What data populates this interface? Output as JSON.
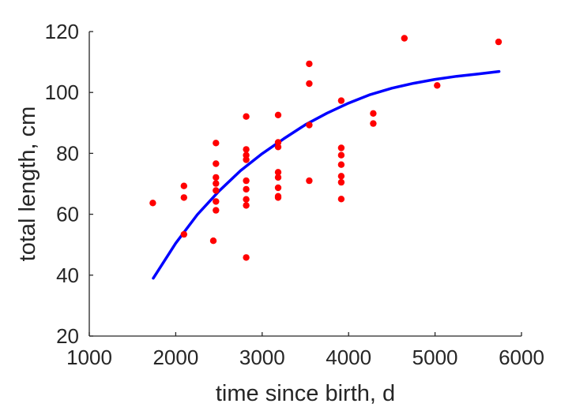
{
  "chart_data": {
    "type": "scatter",
    "title": "",
    "xlabel": "time since birth, d",
    "ylabel": "total length, cm",
    "xlim": [
      1000,
      6000
    ],
    "ylim": [
      20,
      120
    ],
    "xticks": [
      1000,
      2000,
      3000,
      4000,
      5000,
      6000
    ],
    "yticks": [
      20,
      40,
      60,
      80,
      100,
      120
    ],
    "xtick_labels": [
      "1000",
      "2000",
      "3000",
      "4000",
      "5000",
      "6000"
    ],
    "ytick_labels": [
      "20",
      "40",
      "60",
      "80",
      "100",
      "120"
    ],
    "grid": false,
    "legend": "none",
    "colors": {
      "points": "#ff0000",
      "curve": "#0000ff",
      "axes": "#262626"
    },
    "series": [
      {
        "kind": "scatter",
        "points": [
          [
            1735,
            63.7
          ],
          [
            2095,
            69.3
          ],
          [
            2095,
            65.5
          ],
          [
            2095,
            53.4
          ],
          [
            2435,
            51.3
          ],
          [
            2465,
            83.4
          ],
          [
            2465,
            76.6
          ],
          [
            2465,
            72.1
          ],
          [
            2465,
            70.1
          ],
          [
            2465,
            67.8
          ],
          [
            2465,
            64.2
          ],
          [
            2465,
            61.3
          ],
          [
            2815,
            92.1
          ],
          [
            2815,
            81.3
          ],
          [
            2815,
            79.4
          ],
          [
            2815,
            77.9
          ],
          [
            2815,
            71.0
          ],
          [
            2815,
            68.2
          ],
          [
            2815,
            64.9
          ],
          [
            2815,
            62.9
          ],
          [
            2815,
            45.8
          ],
          [
            3185,
            92.6
          ],
          [
            3185,
            83.6
          ],
          [
            3185,
            82.1
          ],
          [
            3185,
            73.8
          ],
          [
            3185,
            72.1
          ],
          [
            3185,
            68.7
          ],
          [
            3185,
            65.9
          ],
          [
            3185,
            65.5
          ],
          [
            3545,
            109.4
          ],
          [
            3545,
            102.9
          ],
          [
            3545,
            89.3
          ],
          [
            3545,
            71.0
          ],
          [
            3915,
            97.3
          ],
          [
            3915,
            81.8
          ],
          [
            3915,
            79.4
          ],
          [
            3915,
            76.3
          ],
          [
            3915,
            72.5
          ],
          [
            3915,
            70.5
          ],
          [
            3915,
            65.0
          ],
          [
            4285,
            93.1
          ],
          [
            4285,
            89.8
          ],
          [
            4645,
            117.8
          ],
          [
            5025,
            102.3
          ],
          [
            5735,
            116.6
          ]
        ]
      },
      {
        "kind": "line",
        "points": [
          [
            1740,
            39.0
          ],
          [
            2000,
            50.5
          ],
          [
            2250,
            59.9
          ],
          [
            2500,
            67.6
          ],
          [
            2750,
            74.3
          ],
          [
            3000,
            79.9
          ],
          [
            3250,
            84.8
          ],
          [
            3500,
            89.4
          ],
          [
            3750,
            93.2
          ],
          [
            4000,
            96.5
          ],
          [
            4250,
            99.3
          ],
          [
            4500,
            101.4
          ],
          [
            4750,
            103.0
          ],
          [
            5000,
            104.3
          ],
          [
            5250,
            105.3
          ],
          [
            5500,
            106.1
          ],
          [
            5740,
            106.9
          ]
        ]
      }
    ]
  }
}
